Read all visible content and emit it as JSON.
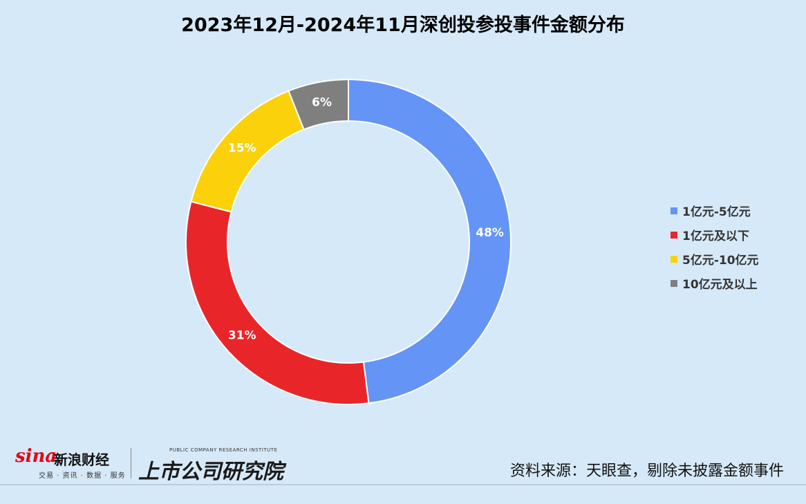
{
  "title": "2023年12月-2024年11月深创投参投事件金额分布",
  "source": "资料来源：天眼查，剔除未披露金额事件",
  "logos": {
    "sina_word": "sina",
    "sina_brand": "新浪财经",
    "sina_tagline": "交易 · 资讯 · 数据 · 服务",
    "institute_small": "PUBLIC COMPANY RESEARCH INSTITUTE",
    "institute_name": "上市公司研究院"
  },
  "chart_data": {
    "type": "pie",
    "variant": "donut",
    "title": "2023年12月-2024年11月深创投参投事件金额分布",
    "legend_position": "right",
    "slices": [
      {
        "name": "1亿元-5亿元",
        "value": 48,
        "label": "48%",
        "color": "#6495f6"
      },
      {
        "name": "1亿元及以下",
        "value": 31,
        "label": "31%",
        "color": "#e8262a"
      },
      {
        "name": "5亿元-10亿元",
        "value": 15,
        "label": "15%",
        "color": "#fbd10c"
      },
      {
        "name": "10亿元及以上",
        "value": 6,
        "label": "6%",
        "color": "#7f7f7f"
      }
    ]
  }
}
